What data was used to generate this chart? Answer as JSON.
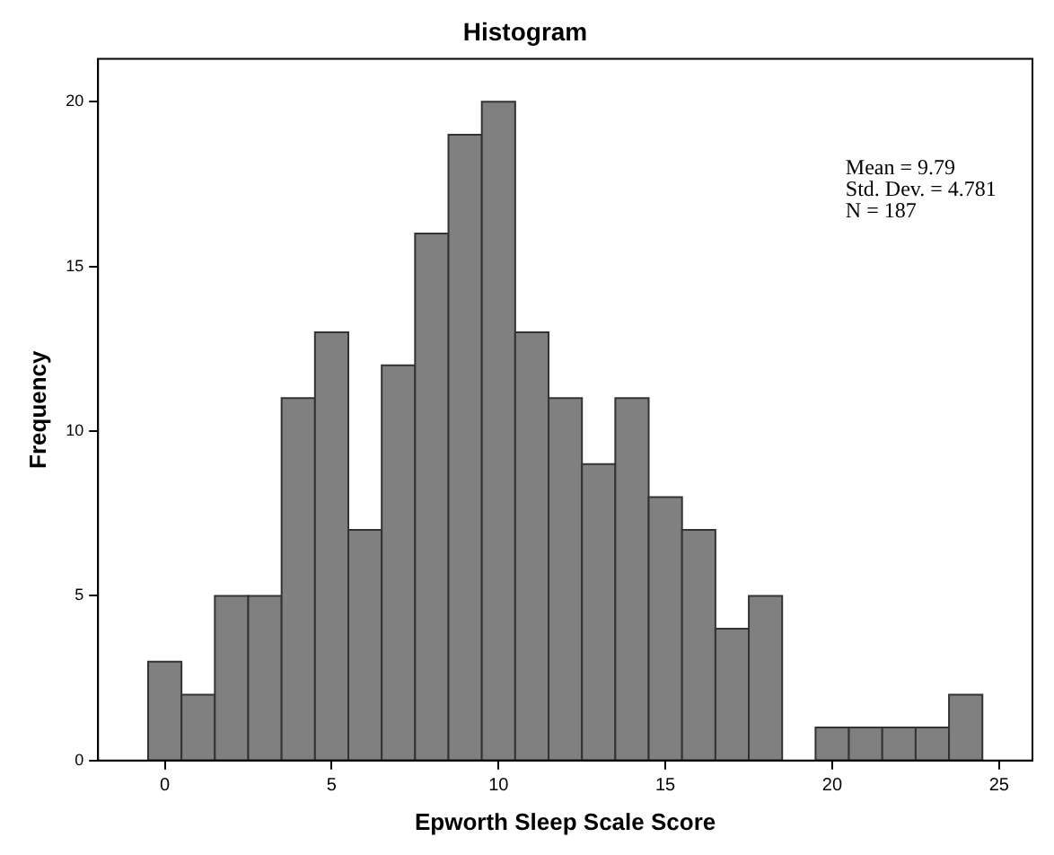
{
  "chart_data": {
    "type": "histogram",
    "title": "Histogram",
    "xlabel": "Epworth Sleep Scale Score",
    "ylabel": "Frequency",
    "bins": [
      -0.5,
      0.5,
      1.5,
      2.5,
      3.5,
      4.5,
      5.5,
      6.5,
      7.5,
      8.5,
      9.5,
      10.5,
      11.5,
      12.5,
      13.5,
      14.5,
      15.5,
      16.5,
      17.5,
      18.5,
      19.5,
      20.5,
      21.5,
      22.5,
      23.5,
      24.5
    ],
    "values": [
      3,
      2,
      5,
      5,
      11,
      13,
      7,
      12,
      16,
      19,
      20,
      13,
      11,
      9,
      11,
      8,
      7,
      4,
      5,
      0,
      1,
      1,
      1,
      1,
      2
    ],
    "color": "#808080",
    "xlim": [
      -2,
      26
    ],
    "xticks": [
      0,
      5,
      10,
      15,
      20,
      25
    ],
    "ylim": [
      0,
      21.3
    ],
    "yticks": [
      0,
      5,
      10,
      15,
      20
    ],
    "grid": false,
    "annotations": [
      "Mean = 9.79",
      "Std. Dev. = 4.781",
      "N = 187"
    ]
  }
}
